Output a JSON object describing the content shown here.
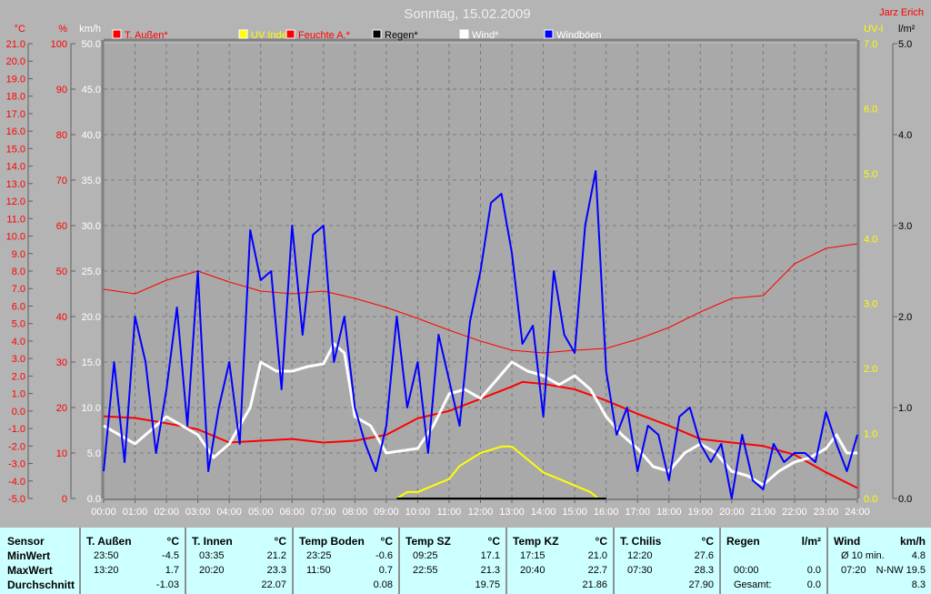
{
  "title": "Sonntag, 15.02.2009",
  "user": "Jarz Erich",
  "colors": {
    "background": "#b4b4b4",
    "plot": "#a9a9a9",
    "grid": "#808080",
    "temp": "#ff0000",
    "humidity": "#ff0000",
    "uv": "#ffff00",
    "rain": "#000000",
    "wind": "#ffffff",
    "gusts": "#0000ff",
    "table": "#ccffff"
  },
  "chart_data": {
    "type": "line",
    "axes": {
      "temp": {
        "unit": "°C",
        "range": [
          -5,
          21
        ],
        "ticks": [
          "-5.0",
          "-4.0",
          "-3.0",
          "-2.0",
          "-1.0",
          "0.0",
          "1.0",
          "2.0",
          "3.0",
          "4.0",
          "5.0",
          "6.0",
          "7.0",
          "8.0",
          "9.0",
          "10.0",
          "11.0",
          "12.0",
          "13.0",
          "14.0",
          "15.0",
          "16.0",
          "17.0",
          "18.0",
          "19.0",
          "20.0",
          "21.0"
        ]
      },
      "humidity": {
        "unit": "%",
        "range": [
          0,
          100
        ],
        "ticks": [
          "0",
          "10",
          "20",
          "30",
          "40",
          "50",
          "60",
          "70",
          "80",
          "90",
          "100"
        ]
      },
      "wind": {
        "unit": "km/h",
        "range": [
          0,
          50
        ],
        "ticks": [
          "0.0",
          "5.0",
          "10.0",
          "15.0",
          "20.0",
          "25.0",
          "30.0",
          "35.0",
          "40.0",
          "45.0",
          "50.0"
        ]
      },
      "uv": {
        "unit": "UV-I",
        "range": [
          0,
          7
        ],
        "ticks": [
          "0.0",
          "1.0",
          "2.0",
          "3.0",
          "4.0",
          "5.0",
          "6.0",
          "7.0"
        ]
      },
      "rain": {
        "unit": "l/m²",
        "range": [
          0,
          5
        ],
        "ticks": [
          "0.0",
          "1.0",
          "2.0",
          "3.0",
          "4.0",
          "5.0"
        ]
      },
      "x": {
        "range": [
          "00:00",
          "24:00"
        ],
        "ticks": [
          "00:00",
          "01:00",
          "02:00",
          "03:00",
          "04:00",
          "05:00",
          "06:00",
          "07:00",
          "08:00",
          "09:00",
          "10:00",
          "11:00",
          "12:00",
          "13:00",
          "14:00",
          "15:00",
          "16:00",
          "17:00",
          "18:00",
          "19:00",
          "20:00",
          "21:00",
          "22:00",
          "23:00",
          "24:00"
        ]
      }
    },
    "grid": true,
    "legend_placement": "top",
    "series": [
      {
        "name": "T. Außen*",
        "axis": "temp",
        "color": "#ff0000",
        "width": 2,
        "x": [
          "00:00",
          "01:00",
          "02:00",
          "03:00",
          "04:00",
          "05:00",
          "06:00",
          "07:00",
          "08:00",
          "09:00",
          "10:00",
          "11:00",
          "12:00",
          "13:00",
          "13:20",
          "14:00",
          "15:00",
          "16:00",
          "17:00",
          "18:00",
          "19:00",
          "20:00",
          "21:00",
          "22:00",
          "23:00",
          "24:00"
        ],
        "values": [
          -0.3,
          -0.4,
          -0.7,
          -1.05,
          -1.8,
          -1.7,
          -1.6,
          -1.8,
          -1.7,
          -1.36,
          -0.42,
          0,
          0.7,
          1.4,
          1.66,
          1.55,
          1.24,
          0.6,
          -0.16,
          -0.84,
          -1.6,
          -1.8,
          -2.0,
          -2.5,
          -3.5,
          -4.4
        ]
      },
      {
        "name": "UV Index",
        "axis": "uv",
        "color": "#ffff00",
        "width": 2,
        "x": [
          "09:20",
          "09:40",
          "10:00",
          "10:30",
          "11:00",
          "11:20",
          "12:00",
          "12:40",
          "13:00",
          "13:30",
          "14:00",
          "14:30",
          "15:00",
          "15:30",
          "15:45"
        ],
        "values": [
          0,
          0.1,
          0.1,
          0.2,
          0.3,
          0.5,
          0.7,
          0.8,
          0.8,
          0.6,
          0.4,
          0.3,
          0.2,
          0.1,
          0
        ]
      },
      {
        "name": "Feuchte A.*",
        "axis": "humidity",
        "color": "#ff0000",
        "width": 1,
        "x": [
          "00:00",
          "01:00",
          "02:00",
          "03:00",
          "04:00",
          "05:00",
          "06:00",
          "07:00",
          "08:00",
          "09:00",
          "10:00",
          "11:00",
          "12:00",
          "13:00",
          "14:00",
          "15:00",
          "16:00",
          "17:00",
          "18:00",
          "19:00",
          "20:00",
          "21:00",
          "22:00",
          "23:00",
          "24:00"
        ],
        "values": [
          46,
          45,
          48,
          50,
          47.6,
          45.6,
          45,
          45.6,
          44,
          42,
          39.6,
          37,
          34.6,
          32.6,
          32,
          32.6,
          33,
          35,
          37.6,
          41,
          44,
          44.6,
          51.6,
          55,
          56
        ]
      },
      {
        "name": "Regen*",
        "axis": "rain",
        "color": "#000000",
        "width": 2,
        "x": [
          "09:20",
          "16:00"
        ],
        "values": [
          0,
          0
        ]
      },
      {
        "name": "Wind*",
        "axis": "wind",
        "color": "#ffffff",
        "width": 3,
        "x": [
          "00:00",
          "01:00",
          "02:00",
          "03:00",
          "03:30",
          "04:00",
          "04:40",
          "05:00",
          "05:30",
          "06:00",
          "06:30",
          "07:00",
          "07:20",
          "07:40",
          "08:00",
          "08:30",
          "09:00",
          "10:00",
          "10:30",
          "11:00",
          "11:30",
          "12:00",
          "12:30",
          "13:00",
          "13:30",
          "14:00",
          "14:30",
          "15:00",
          "15:30",
          "16:00",
          "16:30",
          "17:00",
          "17:30",
          "18:00",
          "18:30",
          "19:00",
          "19:30",
          "20:00",
          "20:30",
          "21:00",
          "21:30",
          "22:00",
          "22:30",
          "23:00",
          "23:20",
          "23:40",
          "24:00"
        ],
        "values": [
          8,
          6,
          9,
          7,
          4.5,
          6,
          10,
          15,
          14,
          14,
          14.5,
          14.8,
          17,
          16,
          9,
          8,
          5,
          5.5,
          8,
          11.5,
          12,
          11,
          13,
          15,
          14,
          13.5,
          12.5,
          13.5,
          12,
          9,
          7,
          5.5,
          3.5,
          3,
          5,
          6,
          5,
          3,
          2.5,
          1.5,
          3,
          4,
          4.5,
          5.5,
          7,
          5,
          5
        ]
      },
      {
        "name": "Windböen",
        "axis": "wind",
        "color": "#0000ff",
        "width": 2,
        "x": [
          "00:00",
          "00:20",
          "00:40",
          "01:00",
          "01:20",
          "01:40",
          "02:00",
          "02:20",
          "02:40",
          "03:00",
          "03:20",
          "03:40",
          "04:00",
          "04:20",
          "04:40",
          "05:00",
          "05:20",
          "05:40",
          "06:00",
          "06:20",
          "06:40",
          "07:00",
          "07:20",
          "07:40",
          "08:00",
          "08:20",
          "08:40",
          "09:00",
          "09:20",
          "09:40",
          "10:00",
          "10:20",
          "10:40",
          "11:00",
          "11:20",
          "11:40",
          "12:00",
          "12:20",
          "12:40",
          "13:00",
          "13:20",
          "13:40",
          "14:00",
          "14:20",
          "14:40",
          "15:00",
          "15:20",
          "15:40",
          "16:00",
          "16:20",
          "16:40",
          "17:00",
          "17:20",
          "17:40",
          "18:00",
          "18:20",
          "18:40",
          "19:00",
          "19:20",
          "19:40",
          "20:00",
          "20:20",
          "20:40",
          "21:00",
          "21:20",
          "21:40",
          "22:00",
          "22:20",
          "22:40",
          "23:00",
          "23:20",
          "23:40",
          "24:00"
        ],
        "values": [
          3,
          15,
          4,
          20,
          15,
          5,
          12,
          21,
          8,
          25,
          3,
          10,
          15,
          6,
          29.5,
          24,
          25,
          12,
          30,
          18,
          29,
          30,
          15,
          20,
          10,
          6,
          3,
          8,
          20,
          10,
          15,
          5,
          18,
          13,
          8,
          19.5,
          25,
          32.5,
          33.5,
          27,
          17,
          19,
          9,
          25,
          18,
          16,
          30,
          36,
          14,
          7,
          10,
          3,
          8,
          7,
          2,
          9,
          10,
          6,
          4,
          6,
          0,
          7,
          2,
          1,
          6,
          4,
          5,
          5,
          4,
          9.5,
          6,
          3,
          7
        ]
      }
    ]
  },
  "legend": [
    {
      "label": "T. Außen*",
      "color": "#ff0000"
    },
    {
      "label": "UV Index",
      "color": "#ffff00"
    },
    {
      "label": "Feuchte A.*",
      "color": "#ff0000"
    },
    {
      "label": "Regen*",
      "color": "#000000"
    },
    {
      "label": "Wind*",
      "color": "#ffffff"
    },
    {
      "label": "Windböen",
      "color": "#0000ff"
    }
  ],
  "table": {
    "sensor": {
      "header": "Sensor",
      "rows": [
        "MinWert",
        "MaxWert",
        "Durchschnitt"
      ]
    },
    "columns": [
      {
        "name": "T. Außen",
        "unit": "°C",
        "min_time": "23:50",
        "min": "-4.5",
        "max_time": "13:20",
        "max": "1.7",
        "avg": "-1.03"
      },
      {
        "name": "T. Innen",
        "unit": "°C",
        "min_time": "03:35",
        "min": "21.2",
        "max_time": "20:20",
        "max": "23.3",
        "avg": "22.07"
      },
      {
        "name": "Temp Boden",
        "unit": "°C",
        "min_time": "23:25",
        "min": "-0.6",
        "max_time": "11:50",
        "max": "0.7",
        "avg": "0.08"
      },
      {
        "name": "Temp SZ",
        "unit": "°C",
        "min_time": "09:25",
        "min": "17.1",
        "max_time": "22:55",
        "max": "21.3",
        "avg": "19.75"
      },
      {
        "name": "Temp KZ",
        "unit": "°C",
        "min_time": "17:15",
        "min": "21.0",
        "max_time": "20:40",
        "max": "22.7",
        "avg": "21.86"
      },
      {
        "name": "T. Chilis",
        "unit": "°C",
        "min_time": "12:20",
        "min": "27.6",
        "max_time": "07:30",
        "max": "28.3",
        "avg": "27.90"
      },
      {
        "name": "Regen",
        "unit": "l/m²",
        "min_time": "",
        "min": "",
        "max_time": "00:00",
        "max": "0.0",
        "avg_label": "Gesamt:",
        "avg": "0.0"
      },
      {
        "name": "Wind",
        "unit": "km/h",
        "min_time": "Ø 10 min.",
        "min": "4.8",
        "max_time": "07:20",
        "max": "N-NW 19.5",
        "avg": "8.3"
      }
    ]
  }
}
